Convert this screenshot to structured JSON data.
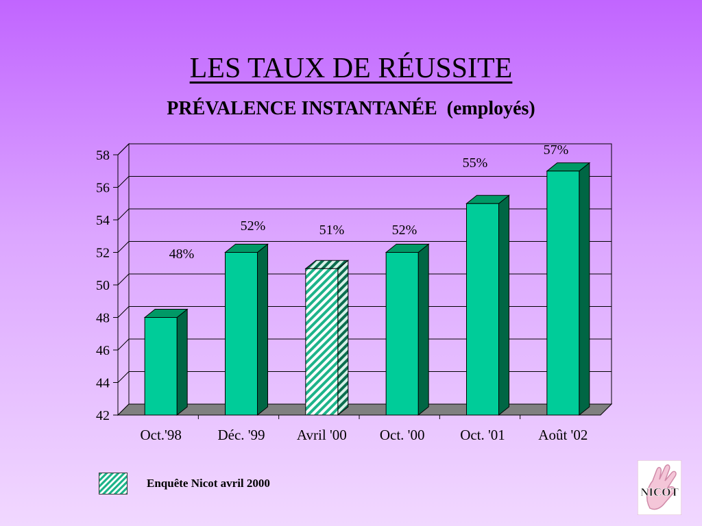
{
  "page": {
    "title": "LES TAUX DE RÉUSSITE",
    "subtitle": "PRÉVALENCE INSTANTANÉE  (employés)"
  },
  "chart_data": {
    "type": "bar",
    "categories": [
      "Oct.'98",
      "Déc. '99",
      "Avril '00",
      "Oct. '00",
      "Oct. '01",
      "Août '02"
    ],
    "values": [
      48,
      52,
      51,
      52,
      55,
      57
    ],
    "data_labels": [
      "48%",
      "52%",
      "51%",
      "52%",
      "55%",
      "57%"
    ],
    "hatched_index": 2,
    "ylim": [
      42,
      58
    ],
    "yticks": [
      42,
      44,
      46,
      48,
      50,
      52,
      54,
      56,
      58
    ],
    "grid": true,
    "style": "3d",
    "colors": {
      "bar_front": "#00cc99",
      "bar_top": "#009966",
      "bar_side": "#006644",
      "floor": "#808080"
    }
  },
  "legend": {
    "label": "Enquête Nicot avril 2000",
    "placement": "bottom-left"
  },
  "logo": {
    "text": "NICOT"
  }
}
